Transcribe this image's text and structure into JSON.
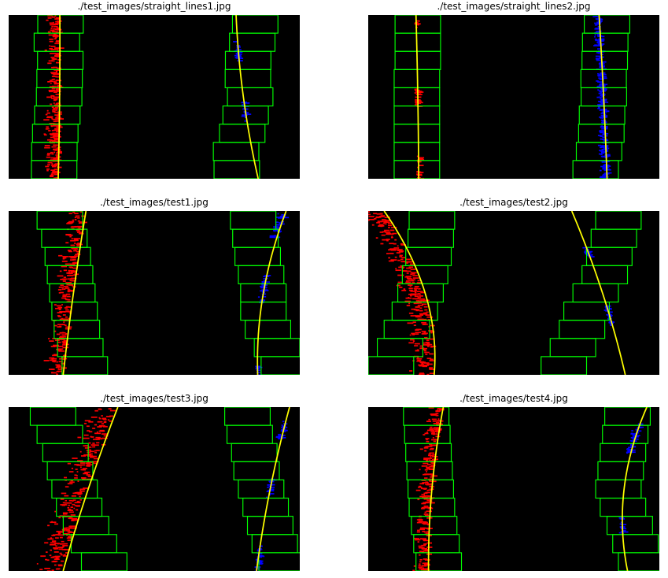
{
  "figure": {
    "panels": [
      {
        "title": "./test_images/straight_lines1.jpg"
      },
      {
        "title": "./test_images/straight_lines2.jpg"
      },
      {
        "title": "./test_images/test1.jpg"
      },
      {
        "title": "./test_images/test2.jpg"
      },
      {
        "title": "./test_images/test3.jpg"
      },
      {
        "title": "./test_images/test4.jpg"
      }
    ]
  },
  "colors": {
    "background": "#000000",
    "search_window": "#00ff00",
    "left_lane_pixels": "#ff0000",
    "right_lane_pixels": "#0000ff",
    "fit_line": "#ffff00",
    "noise": "#ffffff"
  },
  "chart_data": [
    {
      "type": "line",
      "title": "./test_images/straight_lines1.jpg",
      "xlim": [
        0,
        1280
      ],
      "ylim": [
        720,
        0
      ],
      "n_windows": 9,
      "left_fit": {
        "y": [
          0,
          360,
          719
        ],
        "x": [
          225,
          224,
          218
        ]
      },
      "right_fit": {
        "y": [
          0,
          360,
          719
        ],
        "x": [
          1000,
          1032,
          1097
        ]
      },
      "left_windows_x": [
        200,
        201,
        205,
        214,
        222,
        224,
        227,
        212,
        228
      ],
      "right_windows_x": [
        1003,
        1000,
        1027,
        1042,
        1062,
        1052,
        1053,
        1071,
        1084
      ],
      "left_pixels": [
        {
          "y0": 0,
          "y1": 719,
          "x0": 150,
          "x1": 300,
          "density": 0.9
        }
      ],
      "right_pixels": [
        {
          "y0": 100,
          "y1": 200,
          "x0": 995,
          "x1": 1040,
          "density": 0.5
        },
        {
          "y0": 380,
          "y1": 470,
          "x0": 1005,
          "x1": 1050,
          "density": 0.5
        }
      ]
    },
    {
      "type": "line",
      "title": "./test_images/straight_lines2.jpg",
      "xlim": [
        0,
        1280
      ],
      "ylim": [
        720,
        0
      ],
      "n_windows": 9,
      "left_fit": {
        "y": [
          0,
          360,
          719
        ],
        "x": [
          210,
          218,
          222
        ]
      },
      "right_fit": {
        "y": [
          0,
          360,
          719
        ],
        "x": [
          1015,
          1035,
          1050
        ]
      },
      "left_windows_x": [
        214,
        214,
        214,
        214,
        214,
        214,
        218,
        218,
        218
      ],
      "right_windows_x": [
        1000,
        1015,
        1025,
        1028,
        1036,
        1035,
        1040,
        1042,
        1050
      ],
      "left_pixels": [
        {
          "y0": 320,
          "y1": 400,
          "x0": 195,
          "x1": 235,
          "density": 0.8
        },
        {
          "y0": 610,
          "y1": 719,
          "x0": 205,
          "x1": 230,
          "density": 0.5
        },
        {
          "y0": 20,
          "y1": 60,
          "x0": 205,
          "x1": 230,
          "density": 0.4
        }
      ],
      "right_pixels": [
        {
          "y0": 0,
          "y1": 719,
          "x0": 995,
          "x1": 1070,
          "density": 0.85
        }
      ]
    },
    {
      "type": "line",
      "title": "./test_images/test1.jpg",
      "xlim": [
        0,
        1280
      ],
      "ylim": [
        720,
        0
      ],
      "n_windows": 9,
      "left_fit": {
        "y": [
          0,
          360,
          719
        ],
        "x": [
          340,
          285,
          240
        ]
      },
      "right_fit": {
        "y": [
          0,
          360,
          719
        ],
        "x": [
          1220,
          1120,
          1095
        ]
      },
      "left_windows_x": [
        335,
        315,
        300,
        290,
        280,
        270,
        260,
        245,
        225
      ],
      "right_windows_x": [
        1210,
        1180,
        1140,
        1120,
        1120,
        1110,
        1095,
        1085,
        1075
      ],
      "left_pixels": [
        {
          "y0": 0,
          "y1": 719,
          "x0": 210,
          "x1": 400,
          "density": 0.8
        }
      ],
      "right_pixels": [
        {
          "y0": 0,
          "y1": 120,
          "x0": 1150,
          "x1": 1250,
          "density": 0.7
        },
        {
          "y0": 280,
          "y1": 400,
          "x0": 1110,
          "x1": 1160,
          "density": 0.6
        },
        {
          "y0": 680,
          "y1": 719,
          "x0": 1095,
          "x1": 1120,
          "density": 0.4
        }
      ]
    },
    {
      "type": "line",
      "title": "./test_images/test2.jpg",
      "xlim": [
        0,
        1280
      ],
      "ylim": [
        720,
        0
      ],
      "n_windows": 9,
      "left_fit": {
        "y": [
          0,
          360,
          719
        ],
        "x": [
          70,
          250,
          290
        ]
      },
      "right_fit": {
        "y": [
          0,
          360,
          719
        ],
        "x": [
          895,
          1030,
          1130
        ]
      },
      "left_windows_x": [
        100,
        140,
        170,
        205,
        230,
        250,
        265,
        275,
        280
      ],
      "right_windows_x": [
        860,
        900,
        940,
        960,
        1000,
        1040,
        1060,
        1080,
        1100
      ],
      "left_pixels": [
        {
          "y0": 0,
          "y1": 719,
          "x0": 60,
          "x1": 330,
          "density": 0.9
        }
      ],
      "right_pixels": [
        {
          "y0": 150,
          "y1": 200,
          "x0": 960,
          "x1": 1010,
          "density": 0.6
        },
        {
          "y0": 410,
          "y1": 500,
          "x0": 1070,
          "x1": 1110,
          "density": 0.6
        }
      ]
    },
    {
      "type": "line",
      "title": "./test_images/test3.jpg",
      "xlim": [
        0,
        1280
      ],
      "ylim": [
        720,
        0
      ],
      "n_windows": 9,
      "left_fit": {
        "y": [
          0,
          360,
          719
        ],
        "x": [
          480,
          350,
          240
        ]
      },
      "right_fit": {
        "y": [
          0,
          360,
          719
        ],
        "x": [
          1235,
          1150,
          1090
        ]
      },
      "left_windows_x": [
        420,
        375,
        340,
        310,
        290,
        270,
        250,
        225,
        195
      ],
      "right_windows_x": [
        1200,
        1170,
        1150,
        1130,
        1110,
        1090,
        1080,
        1060,
        1050
      ],
      "left_pixels": [
        {
          "y0": 0,
          "y1": 719,
          "x0": 230,
          "x1": 510,
          "density": 0.85
        }
      ],
      "right_pixels": [
        {
          "y0": 60,
          "y1": 140,
          "x0": 1170,
          "x1": 1230,
          "density": 0.6
        },
        {
          "y0": 310,
          "y1": 400,
          "x0": 1115,
          "x1": 1160,
          "density": 0.6
        },
        {
          "y0": 600,
          "y1": 719,
          "x0": 1085,
          "x1": 1110,
          "density": 0.5
        }
      ]
    },
    {
      "type": "line",
      "title": "./test_images/test4.jpg",
      "xlim": [
        0,
        1280
      ],
      "ylim": [
        720,
        0
      ],
      "n_windows": 9,
      "left_fit": {
        "y": [
          0,
          360,
          719
        ],
        "x": [
          330,
          280,
          265
        ]
      },
      "right_fit": {
        "y": [
          0,
          360,
          719
        ],
        "x": [
          1225,
          1125,
          1140
        ]
      },
      "left_windows_x": [
        310,
        300,
        290,
        280,
        275,
        270,
        265,
        260,
        255
      ],
      "right_windows_x": [
        1200,
        1175,
        1150,
        1120,
        1100,
        1110,
        1120,
        1130,
        1140
      ],
      "left_pixels": [
        {
          "y0": 0,
          "y1": 719,
          "x0": 220,
          "x1": 370,
          "density": 0.75
        }
      ],
      "right_pixels": [
        {
          "y0": 70,
          "y1": 200,
          "x0": 1130,
          "x1": 1210,
          "density": 0.7
        },
        {
          "y0": 480,
          "y1": 560,
          "x0": 1110,
          "x1": 1150,
          "density": 0.5
        }
      ]
    }
  ]
}
